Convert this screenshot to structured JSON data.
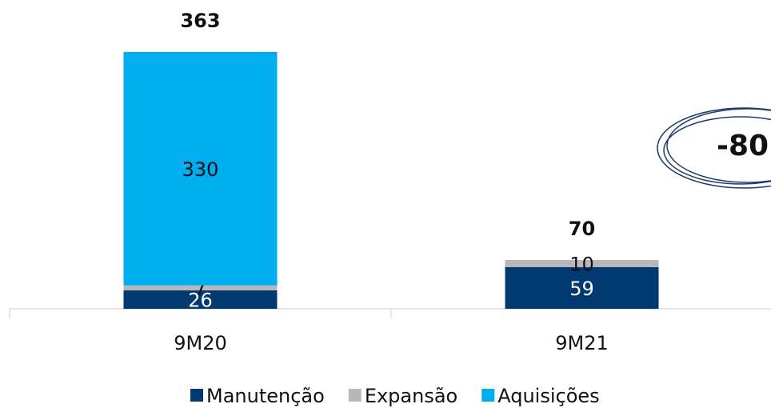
{
  "chart_data": {
    "type": "stacked-bar",
    "categories": [
      "9M20",
      "9M21"
    ],
    "series": [
      {
        "name": "Manutenção",
        "color": "#003a70",
        "label_color": "#ffffff",
        "values": [
          26,
          59
        ]
      },
      {
        "name": "Expansão",
        "color": "#b8b8bc",
        "label_color": "#111111",
        "values": [
          7,
          10
        ]
      },
      {
        "name": "Aquisições",
        "color": "#00aeef",
        "label_color": "#111111",
        "values": [
          330,
          null
        ]
      }
    ],
    "totals": [
      363,
      70
    ],
    "annotation": "-80"
  }
}
